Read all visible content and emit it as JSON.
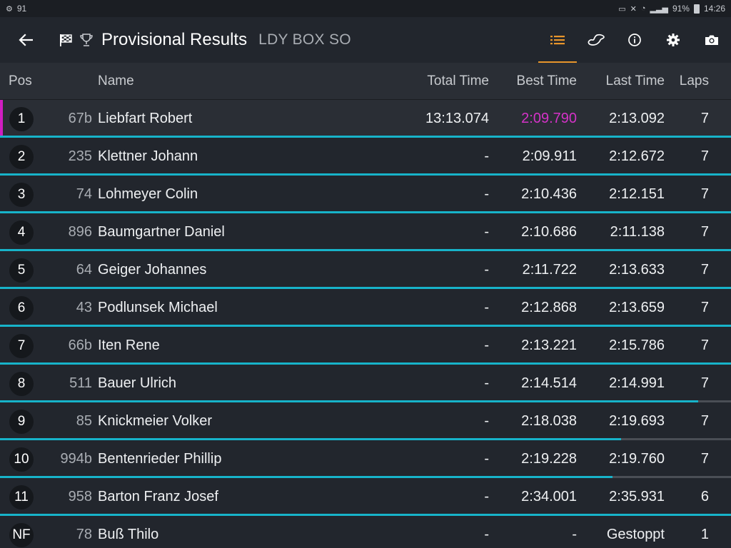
{
  "status_bar": {
    "left_count": "91",
    "battery": "91%",
    "time": "14:26"
  },
  "app_bar": {
    "title": "Provisional Results",
    "subtitle": "LDY BOX SO",
    "icons": [
      "back-arrow-icon",
      "checkered-flag-icon",
      "trophy-icon",
      "list-icon",
      "track-icon",
      "info-icon",
      "gear-icon",
      "camera-icon"
    ],
    "accent_color": "#e8952b"
  },
  "table": {
    "headers": {
      "pos": "Pos",
      "name": "Name",
      "total_time": "Total Time",
      "best_time": "Best Time",
      "last_time": "Last Time",
      "laps": "Laps"
    },
    "progress_color": "#17b3c9",
    "leader_color": "#d11ec1",
    "rows": [
      {
        "pos": "1",
        "nr": "67b",
        "name": "Liebfart Robert",
        "total": "13:13.074",
        "best": "2:09.790",
        "last": "2:13.092",
        "laps": "7",
        "progress": 1.0
      },
      {
        "pos": "2",
        "nr": "235",
        "name": "Klettner Johann",
        "total": "-",
        "best": "2:09.911",
        "last": "2:12.672",
        "laps": "7",
        "progress": 1.0
      },
      {
        "pos": "3",
        "nr": "74",
        "name": "Lohmeyer Colin",
        "total": "-",
        "best": "2:10.436",
        "last": "2:12.151",
        "laps": "7",
        "progress": 1.0
      },
      {
        "pos": "4",
        "nr": "896",
        "name": "Baumgartner Daniel",
        "total": "-",
        "best": "2:10.686",
        "last": "2:11.138",
        "laps": "7",
        "progress": 1.0
      },
      {
        "pos": "5",
        "nr": "64",
        "name": "Geiger Johannes",
        "total": "-",
        "best": "2:11.722",
        "last": "2:13.633",
        "laps": "7",
        "progress": 1.0
      },
      {
        "pos": "6",
        "nr": "43",
        "name": "Podlunsek Michael",
        "total": "-",
        "best": "2:12.868",
        "last": "2:13.659",
        "laps": "7",
        "progress": 1.0
      },
      {
        "pos": "7",
        "nr": "66b",
        "name": "Iten Rene",
        "total": "-",
        "best": "2:13.221",
        "last": "2:15.786",
        "laps": "7",
        "progress": 1.0
      },
      {
        "pos": "8",
        "nr": "511",
        "name": "Bauer Ulrich",
        "total": "-",
        "best": "2:14.514",
        "last": "2:14.991",
        "laps": "7",
        "progress": 0.955
      },
      {
        "pos": "9",
        "nr": "85",
        "name": "Knickmeier Volker",
        "total": "-",
        "best": "2:18.038",
        "last": "2:19.693",
        "laps": "7",
        "progress": 0.85
      },
      {
        "pos": "10",
        "nr": "994b",
        "name": "Bentenrieder Phillip",
        "total": "-",
        "best": "2:19.228",
        "last": "2:19.760",
        "laps": "7",
        "progress": 0.838
      },
      {
        "pos": "11",
        "nr": "958",
        "name": "Barton Franz Josef",
        "total": "-",
        "best": "2:34.001",
        "last": "2:35.931",
        "laps": "6",
        "progress": 1.0
      },
      {
        "pos": "NF",
        "nr": "78",
        "name": "Buß Thilo",
        "total": "-",
        "best": "-",
        "last": "Gestoppt",
        "laps": "1",
        "progress": 0
      }
    ]
  }
}
